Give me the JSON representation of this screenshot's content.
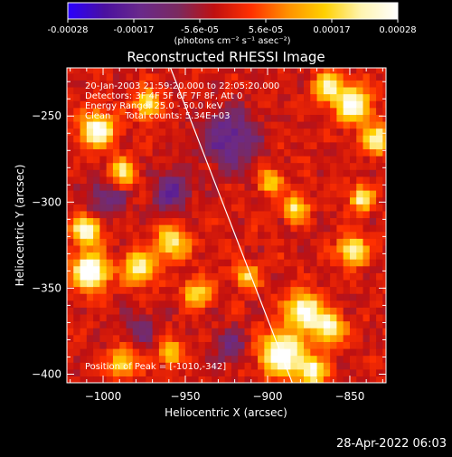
{
  "chart_data": {
    "type": "heatmap",
    "title": "Reconstructed RHESSI Image",
    "xlabel": "Heliocentric X (arcsec)",
    "ylabel": "Heliocentric Y (arcsec)",
    "colorbar": {
      "ticks": [
        "-0.00028",
        "-0.00017",
        "-5.6e-05",
        "5.6e-05",
        "0.00017",
        "0.00028"
      ],
      "min": -0.00028,
      "max": 0.00028,
      "unit_label": "(photons cm⁻² s⁻¹ asec⁻²)",
      "colors": [
        "#2a00ff",
        "#4a10a0",
        "#6a2a8a",
        "#7a2a60",
        "#c01010",
        "#ff3000",
        "#ff9000",
        "#ffd000",
        "#fff4b0",
        "#ffffff"
      ]
    },
    "x_ticks": [
      -1000,
      -950,
      -900,
      -850
    ],
    "y_ticks": [
      -250,
      -300,
      -350,
      -400
    ],
    "xlim": [
      -1022,
      -828
    ],
    "ylim": [
      -405,
      -222
    ],
    "annotations": [
      "20-Jan-2003 21:59:20.000 to 22:05:20.000",
      "Detectors: 3F 4F 5F 6F 7F 8F, Att 0",
      "Energy Range: 25.0 - 50.0 keV",
      "Clean     Total counts: 5.34E+03"
    ],
    "peak_label": "Position of Peak = [-1010,-342]",
    "peak": [
      -1010,
      -342
    ],
    "limb": [
      [
        -959,
        -222
      ],
      [
        -885,
        -405
      ]
    ],
    "hot_regions": [
      {
        "x": -1010,
        "y": -342,
        "r": 10,
        "v": 1.0
      },
      {
        "x": -1012,
        "y": -318,
        "r": 8,
        "v": 0.85
      },
      {
        "x": -1005,
        "y": -260,
        "r": 10,
        "v": 0.8
      },
      {
        "x": -990,
        "y": -285,
        "r": 8,
        "v": 0.6
      },
      {
        "x": -980,
        "y": -340,
        "r": 9,
        "v": 0.7
      },
      {
        "x": -960,
        "y": -325,
        "r": 9,
        "v": 0.65
      },
      {
        "x": -975,
        "y": -245,
        "r": 8,
        "v": 0.6
      },
      {
        "x": -945,
        "y": -355,
        "r": 8,
        "v": 0.55
      },
      {
        "x": -915,
        "y": -345,
        "r": 7,
        "v": 0.5
      },
      {
        "x": -900,
        "y": -290,
        "r": 7,
        "v": 0.5
      },
      {
        "x": -885,
        "y": -305,
        "r": 7,
        "v": 0.6
      },
      {
        "x": -893,
        "y": -390,
        "r": 12,
        "v": 0.95
      },
      {
        "x": -880,
        "y": -365,
        "r": 10,
        "v": 0.85
      },
      {
        "x": -865,
        "y": -375,
        "r": 9,
        "v": 0.7
      },
      {
        "x": -850,
        "y": -330,
        "r": 8,
        "v": 0.75
      },
      {
        "x": -845,
        "y": -300,
        "r": 7,
        "v": 0.6
      },
      {
        "x": -850,
        "y": -245,
        "r": 10,
        "v": 0.85
      },
      {
        "x": -835,
        "y": -265,
        "r": 8,
        "v": 0.7
      },
      {
        "x": -865,
        "y": -235,
        "r": 8,
        "v": 0.7
      },
      {
        "x": -875,
        "y": -400,
        "r": 8,
        "v": 0.75
      },
      {
        "x": -990,
        "y": -395,
        "r": 8,
        "v": 0.55
      },
      {
        "x": -960,
        "y": -390,
        "r": 7,
        "v": 0.5
      }
    ],
    "cold_regions": [
      {
        "x": -925,
        "y": -265,
        "r": 16,
        "v": -0.6
      },
      {
        "x": -960,
        "y": -295,
        "r": 12,
        "v": -0.5
      },
      {
        "x": -1000,
        "y": -300,
        "r": 12,
        "v": -0.45
      },
      {
        "x": -980,
        "y": -375,
        "r": 10,
        "v": -0.35
      },
      {
        "x": -925,
        "y": -385,
        "r": 10,
        "v": -0.4
      }
    ]
  },
  "footer": {
    "date": "28-Apr-2022 06:03"
  }
}
